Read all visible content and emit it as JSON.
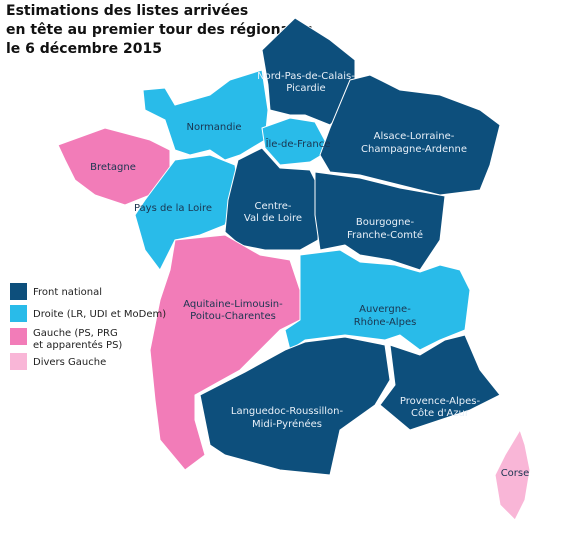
{
  "title": {
    "lines": [
      "Estimations des listes arrivées",
      "en tête au premier tour des régionales,",
      "le 6 décembre 2015"
    ]
  },
  "legend": [
    {
      "label": [
        "Front national"
      ],
      "color": "#0d4f7c"
    },
    {
      "label": [
        "Droite (LR, UDI et MoDem)"
      ],
      "color": "#29bbe9"
    },
    {
      "label": [
        "Gauche (PS, PRG",
        "et apparentés PS)"
      ],
      "color": "#f27cb8"
    },
    {
      "label": [
        "Divers Gauche"
      ],
      "color": "#f9b6d7"
    }
  ],
  "regions": [
    {
      "label": [
        "Nord-Pas-de-Calais-",
        "Picardie"
      ],
      "color": "#0d4f7c"
    },
    {
      "label": [
        "Normandie"
      ],
      "color": "#29bbe9"
    },
    {
      "label": [
        "Île-de-France"
      ],
      "color": "#29bbe9"
    },
    {
      "label": [
        "Alsace-Lorraine-",
        "Champagne-Ardenne"
      ],
      "color": "#0d4f7c"
    },
    {
      "label": [
        "Bretagne"
      ],
      "color": "#f27cb8"
    },
    {
      "label": [
        "Pays de la Loire"
      ],
      "color": "#29bbe9"
    },
    {
      "label": [
        "Centre-",
        "Val de Loire"
      ],
      "color": "#0d4f7c"
    },
    {
      "label": [
        "Bourgogne-",
        "Franche-Comté"
      ],
      "color": "#0d4f7c"
    },
    {
      "label": [
        "Aquitaine-Limousin-",
        "Poitou-Charentes"
      ],
      "color": "#f27cb8"
    },
    {
      "label": [
        "Auvergne-",
        "Rhône-Alpes"
      ],
      "color": "#29bbe9"
    },
    {
      "label": [
        "Languedoc-Roussillon-",
        "Midi-Pyrénées"
      ],
      "color": "#0d4f7c"
    },
    {
      "label": [
        "Provence-Alpes-",
        "Côte d'Azur"
      ],
      "color": "#0d4f7c"
    },
    {
      "label": [
        "Corse"
      ],
      "color": "#f9b6d7"
    }
  ]
}
